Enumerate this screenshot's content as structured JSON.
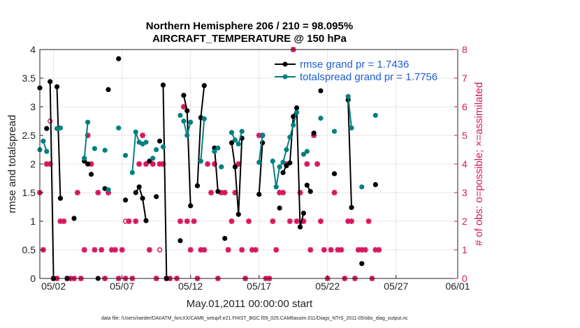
{
  "chart_data": {
    "type": "line",
    "title_line1": "Northern Hemisphere 206 / 210 = 98.095%",
    "title_line2": "AIRCRAFT_TEMPERATURE @ 150 hPa",
    "xlabel": "May.01,2011 00:00:00 start",
    "ylabel_left": "rmse and totalspread",
    "ylabel_right": "# of obs: o=possible; ×=assimilated",
    "footer": "data file: /Users/raeder/DAI/ATM_forcXX/CAM6_setup/f.e21.FHIST_BGC.f09_025.CAM6assim.011/Diags_NTrS_2011-05/obs_diag_output.nc",
    "xlim": [
      0.5,
      31.0
    ],
    "ylim_left": [
      0,
      4
    ],
    "ylim_right": [
      0,
      8
    ],
    "xticks": [
      {
        "x": 1.5,
        "label": "05/02"
      },
      {
        "x": 6.5,
        "label": "05/07"
      },
      {
        "x": 11.5,
        "label": "05/12"
      },
      {
        "x": 16.5,
        "label": "05/17"
      },
      {
        "x": 21.5,
        "label": "05/22"
      },
      {
        "x": 26.5,
        "label": "05/27"
      },
      {
        "x": 31.0,
        "label": "06/01"
      }
    ],
    "yticks_left": [
      "0",
      "0.5",
      "1",
      "1.5",
      "2",
      "2.5",
      "3",
      "3.5",
      "4"
    ],
    "yticks_right": [
      "0",
      "1",
      "2",
      "3",
      "4",
      "5",
      "6",
      "7",
      "8"
    ],
    "legend_position": "top-right",
    "colors": {
      "rmse": "#000000",
      "spread": "#00807f",
      "obs": "#d6175f",
      "legend_text": "#1f5fd6"
    },
    "series": [
      {
        "name": "rmse grand pr = 1.7436",
        "color": "#000000",
        "points": [
          [
            0.5,
            3.33,
            0
          ],
          [
            1.0,
            2.62,
            0
          ],
          [
            1.25,
            3.44,
            1
          ],
          [
            1.5,
            0,
            1
          ],
          [
            1.75,
            3.35,
            2
          ],
          [
            2.0,
            1.4,
            2
          ],
          [
            2.5,
            0,
            0
          ],
          [
            3.0,
            1.05,
            0
          ],
          [
            3.75,
            2.05,
            3
          ],
          [
            4.0,
            2.0,
            3
          ],
          [
            4.25,
            1.82,
            0
          ],
          [
            4.75,
            0,
            0
          ],
          [
            5.25,
            1.57,
            0
          ],
          [
            5.5,
            3.3,
            0
          ],
          [
            6.25,
            3.84,
            0
          ],
          [
            6.75,
            1.37,
            0
          ],
          [
            7.5,
            1.5,
            4
          ],
          [
            7.75,
            1.6,
            4
          ],
          [
            8.0,
            1.4,
            4
          ],
          [
            8.25,
            1.01,
            4
          ],
          [
            8.5,
            2.05,
            0
          ],
          [
            9.0,
            1.43,
            0
          ],
          [
            9.25,
            2.4,
            0
          ],
          [
            9.5,
            3.38,
            5
          ],
          [
            9.75,
            0,
            5
          ],
          [
            10.75,
            0.66,
            0
          ],
          [
            11.0,
            3.2,
            6
          ],
          [
            11.25,
            2.93,
            6
          ],
          [
            11.5,
            1.27,
            6
          ],
          [
            12.0,
            1.62,
            7
          ],
          [
            12.25,
            2.81,
            7
          ],
          [
            12.5,
            3.37,
            7
          ],
          [
            13.25,
            2.28,
            8
          ],
          [
            13.5,
            1.52,
            8
          ],
          [
            14.0,
            0.7,
            0
          ],
          [
            14.5,
            2.37,
            9
          ],
          [
            14.75,
            1.95,
            9
          ],
          [
            15.0,
            1.12,
            9
          ],
          [
            15.25,
            2.45,
            9
          ],
          [
            16.5,
            1.47,
            10
          ],
          [
            16.75,
            2.37,
            10
          ],
          [
            18.0,
            1.23,
            0
          ],
          [
            18.25,
            1.85,
            11
          ],
          [
            18.5,
            1.97,
            11
          ],
          [
            18.75,
            2.02,
            11
          ],
          [
            19.0,
            2.83,
            11
          ],
          [
            19.25,
            2.98,
            11
          ],
          [
            19.5,
            0.9,
            11
          ],
          [
            19.75,
            1.14,
            11
          ],
          [
            20.0,
            1.63,
            12
          ],
          [
            20.25,
            1.52,
            12
          ],
          [
            20.5,
            2.54,
            0
          ],
          [
            21.0,
            3.28,
            0
          ],
          [
            22.0,
            1.83,
            0
          ],
          [
            23.0,
            3.12,
            13
          ],
          [
            23.25,
            1.24,
            13
          ],
          [
            24.0,
            0.26,
            0
          ],
          [
            25.0,
            1.64,
            0
          ]
        ]
      },
      {
        "name": "totalspread grand pr = 1.7756",
        "color": "#00807f",
        "points": [
          [
            0.5,
            2.25,
            0
          ],
          [
            0.75,
            2.4,
            1
          ],
          [
            1.0,
            2.22,
            1
          ],
          [
            1.75,
            2.62,
            2
          ],
          [
            2.0,
            2.63,
            2
          ],
          [
            3.75,
            2.1,
            3
          ],
          [
            4.0,
            2.73,
            3
          ],
          [
            4.5,
            2.27,
            0
          ],
          [
            5.25,
            2.24,
            0
          ],
          [
            5.5,
            1.55,
            0
          ],
          [
            6.25,
            2.63,
            0
          ],
          [
            6.75,
            2.15,
            0
          ],
          [
            7.25,
            1.85,
            4
          ],
          [
            7.5,
            2.56,
            4
          ],
          [
            7.75,
            2.38,
            4
          ],
          [
            8.0,
            2.35,
            4
          ],
          [
            8.25,
            2.38,
            0
          ],
          [
            8.75,
            2.1,
            0
          ],
          [
            9.0,
            2.25,
            0
          ],
          [
            9.5,
            2.3,
            0
          ],
          [
            10.75,
            2.85,
            0
          ],
          [
            11.0,
            2.75,
            6
          ],
          [
            11.25,
            2.5,
            6
          ],
          [
            11.5,
            2.73,
            6
          ],
          [
            12.25,
            2.05,
            7
          ],
          [
            12.5,
            2.79,
            7
          ],
          [
            13.25,
            2.22,
            8
          ],
          [
            13.5,
            2.28,
            8
          ],
          [
            13.75,
            1.95,
            0
          ],
          [
            14.5,
            2.55,
            9
          ],
          [
            14.75,
            2.42,
            9
          ],
          [
            15.0,
            2.35,
            9
          ],
          [
            15.25,
            2.57,
            9
          ],
          [
            16.5,
            2.03,
            10
          ],
          [
            16.75,
            2.5,
            10
          ],
          [
            17.5,
            2.05,
            11
          ],
          [
            17.75,
            1.6,
            11
          ],
          [
            18.0,
            1.95,
            11
          ],
          [
            18.25,
            2.03,
            11
          ],
          [
            18.5,
            2.25,
            11
          ],
          [
            18.75,
            2.47,
            11
          ],
          [
            19.0,
            2.68,
            11
          ],
          [
            19.25,
            2.9,
            11
          ],
          [
            19.75,
            2.17,
            12
          ],
          [
            20.0,
            2.22,
            12
          ],
          [
            21.0,
            2.8,
            0
          ],
          [
            22.0,
            2.57,
            0
          ],
          [
            23.0,
            3.18,
            13
          ],
          [
            23.25,
            2.63,
            13
          ],
          [
            24.0,
            1.6,
            0
          ],
          [
            25.0,
            2.85,
            0
          ]
        ]
      }
    ],
    "obs_assimilated": [
      [
        0.5,
        3
      ],
      [
        0.75,
        1
      ],
      [
        1.0,
        4
      ],
      [
        1.25,
        4
      ],
      [
        1.5,
        0
      ],
      [
        1.75,
        0
      ],
      [
        2.0,
        2
      ],
      [
        2.25,
        2
      ],
      [
        2.5,
        0
      ],
      [
        2.75,
        0
      ],
      [
        3.0,
        0
      ],
      [
        3.25,
        3
      ],
      [
        3.5,
        0
      ],
      [
        3.75,
        1
      ],
      [
        4.0,
        5
      ],
      [
        4.25,
        4
      ],
      [
        4.5,
        1
      ],
      [
        4.75,
        3
      ],
      [
        5.0,
        1
      ],
      [
        5.25,
        0
      ],
      [
        5.5,
        3
      ],
      [
        5.75,
        1
      ],
      [
        6.0,
        1
      ],
      [
        6.25,
        0
      ],
      [
        6.5,
        1
      ],
      [
        6.75,
        0
      ],
      [
        7.0,
        2
      ],
      [
        7.25,
        0
      ],
      [
        7.5,
        2
      ],
      [
        7.75,
        4
      ],
      [
        8.0,
        5
      ],
      [
        8.25,
        4
      ],
      [
        8.5,
        1
      ],
      [
        8.75,
        4
      ],
      [
        9.0,
        0
      ],
      [
        9.25,
        4
      ],
      [
        9.5,
        4
      ],
      [
        9.75,
        0
      ],
      [
        10.0,
        0
      ],
      [
        10.5,
        0
      ],
      [
        10.75,
        2
      ],
      [
        11.0,
        6
      ],
      [
        11.25,
        2
      ],
      [
        11.5,
        1
      ],
      [
        11.75,
        2
      ],
      [
        12.0,
        0
      ],
      [
        12.25,
        1
      ],
      [
        12.5,
        1
      ],
      [
        12.75,
        4
      ],
      [
        13.0,
        3
      ],
      [
        13.25,
        4
      ],
      [
        13.5,
        0
      ],
      [
        13.75,
        3
      ],
      [
        14.0,
        3
      ],
      [
        14.25,
        1
      ],
      [
        14.5,
        2
      ],
      [
        14.75,
        3
      ],
      [
        15.0,
        4
      ],
      [
        15.25,
        1
      ],
      [
        15.5,
        0
      ],
      [
        15.75,
        2
      ],
      [
        16.0,
        1
      ],
      [
        16.25,
        1
      ],
      [
        16.5,
        5
      ],
      [
        16.75,
        5
      ],
      [
        17.0,
        0
      ],
      [
        17.25,
        0
      ],
      [
        17.5,
        2
      ],
      [
        17.75,
        1
      ],
      [
        18.0,
        3
      ],
      [
        18.25,
        3
      ],
      [
        18.5,
        4
      ],
      [
        18.75,
        2
      ],
      [
        19.0,
        8
      ],
      [
        19.25,
        2
      ],
      [
        19.5,
        3
      ],
      [
        19.75,
        2
      ],
      [
        20.0,
        4
      ],
      [
        20.25,
        1
      ],
      [
        20.5,
        5
      ],
      [
        20.75,
        4
      ],
      [
        21.0,
        2
      ],
      [
        21.25,
        1
      ],
      [
        21.5,
        0
      ],
      [
        21.75,
        1
      ],
      [
        22.0,
        3
      ],
      [
        22.25,
        1
      ],
      [
        22.5,
        1
      ],
      [
        22.75,
        0
      ],
      [
        23.0,
        2
      ],
      [
        23.25,
        2
      ],
      [
        23.5,
        0
      ],
      [
        23.75,
        1
      ],
      [
        24.0,
        1
      ],
      [
        24.25,
        1
      ],
      [
        24.5,
        2
      ],
      [
        24.75,
        0
      ],
      [
        25.0,
        1
      ],
      [
        25.25,
        1
      ]
    ],
    "obs_possible": [
      [
        1.25,
        5.5
      ],
      [
        6.75,
        2
      ],
      [
        9.25,
        1
      ]
    ]
  }
}
